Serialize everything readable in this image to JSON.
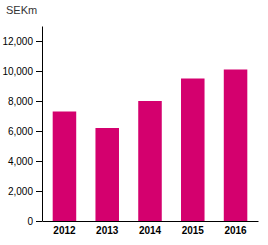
{
  "chart_data": {
    "type": "bar",
    "ylabel": "SEKm",
    "categories": [
      "2012",
      "2013",
      "2014",
      "2015",
      "2016"
    ],
    "values": [
      7300,
      6200,
      8000,
      9500,
      10100
    ],
    "color": "#d4006e",
    "ylim": [
      0,
      13000
    ],
    "yticks": [
      0,
      {
        "value": 2000,
        "label": "2,000"
      },
      {
        "value": 4000,
        "label": "4,000"
      },
      {
        "value": 6000,
        "label": "6,000"
      },
      {
        "value": 8000,
        "label": "8,000"
      },
      {
        "value": 10000,
        "label": "10,000"
      },
      {
        "value": 12000,
        "label": "12,000"
      }
    ],
    "grid": false
  }
}
